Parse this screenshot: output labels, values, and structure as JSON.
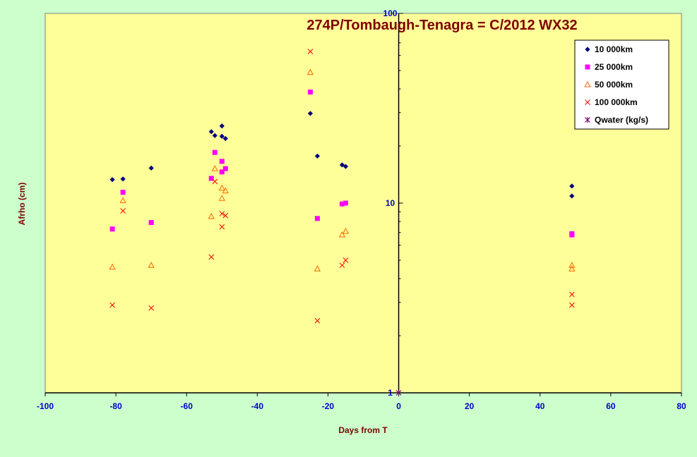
{
  "chart_data": {
    "type": "scatter",
    "title": "274P/Tombaugh-Tenagra = C/2012  WX32",
    "xlabel": "Days from  T",
    "ylabel": "Afrho (cm)",
    "xlim": [
      -100,
      80
    ],
    "ylim": [
      1,
      100
    ],
    "yscale": "log",
    "xticks": [
      "-100",
      "-80",
      "-60",
      "-40",
      "-20",
      "0",
      "20",
      "40",
      "60",
      "80"
    ],
    "yticks": [
      "1",
      "10",
      "100"
    ],
    "legend_position": "top-right",
    "colors": {
      "plot_bg": "#ffff99",
      "page_bg": "#ccffcc",
      "axis_tick": "#0000cc",
      "title": "#800000"
    },
    "series": [
      {
        "name": "10 000km",
        "marker": "diamond",
        "color": "#000080",
        "points": [
          [
            -81,
            13.3
          ],
          [
            -78,
            13.4
          ],
          [
            -70,
            15.3
          ],
          [
            -53,
            23.8
          ],
          [
            -52,
            22.7
          ],
          [
            -50,
            25.5
          ],
          [
            -50,
            22.5
          ],
          [
            -49,
            21.9
          ],
          [
            -25,
            29.7
          ],
          [
            -23,
            17.7
          ],
          [
            -16,
            15.9
          ],
          [
            -15,
            15.6
          ],
          [
            49,
            12.3
          ],
          [
            49,
            10.9
          ]
        ]
      },
      {
        "name": "25 000km",
        "marker": "square",
        "color": "#ff00ff",
        "points": [
          [
            -81,
            7.3
          ],
          [
            -78,
            11.4
          ],
          [
            -70,
            7.9
          ],
          [
            -53,
            13.5
          ],
          [
            -52,
            18.5
          ],
          [
            -50,
            16.6
          ],
          [
            -50,
            14.6
          ],
          [
            -49,
            15.2
          ],
          [
            -25,
            38.5
          ],
          [
            -23,
            8.3
          ],
          [
            -16,
            9.9
          ],
          [
            -15,
            10.0
          ],
          [
            49,
            6.9
          ],
          [
            49,
            6.8
          ]
        ]
      },
      {
        "name": "50 000km",
        "marker": "triangle",
        "color": "#ff6600",
        "points": [
          [
            -81,
            4.6
          ],
          [
            -78,
            10.3
          ],
          [
            -70,
            4.7
          ],
          [
            -53,
            8.5
          ],
          [
            -52,
            15.2
          ],
          [
            -50,
            12.0
          ],
          [
            -50,
            10.6
          ],
          [
            -49,
            11.6
          ],
          [
            -25,
            48.9
          ],
          [
            -23,
            4.5
          ],
          [
            -16,
            6.8
          ],
          [
            -15,
            7.1
          ],
          [
            49,
            4.7
          ],
          [
            49,
            4.5
          ]
        ]
      },
      {
        "name": "100 000km",
        "marker": "x",
        "color": "#ff0000",
        "points": [
          [
            -81,
            2.9
          ],
          [
            -78,
            9.1
          ],
          [
            -70,
            2.8
          ],
          [
            -53,
            5.2
          ],
          [
            -52,
            13.0
          ],
          [
            -50,
            8.8
          ],
          [
            -50,
            7.5
          ],
          [
            -49,
            8.6
          ],
          [
            -25,
            63.0
          ],
          [
            -23,
            2.4
          ],
          [
            -16,
            4.7
          ],
          [
            -15,
            5.0
          ],
          [
            49,
            3.3
          ],
          [
            49,
            2.9
          ]
        ]
      },
      {
        "name": "Qwater (kg/s)",
        "marker": "star",
        "color": "#800080",
        "points": [
          [
            0,
            1.0
          ]
        ]
      }
    ]
  }
}
